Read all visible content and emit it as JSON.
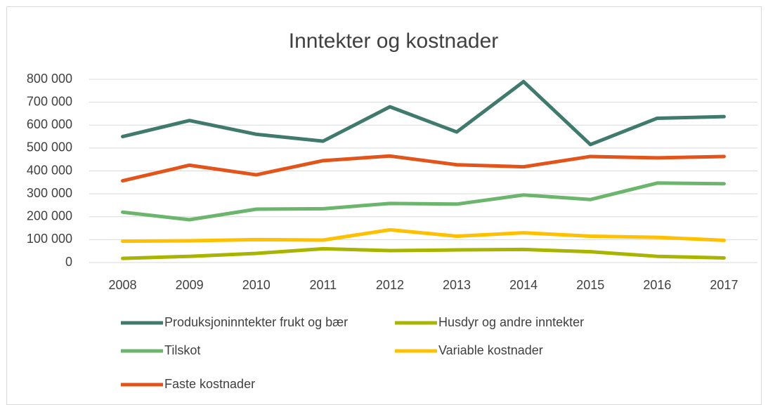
{
  "chart_data": {
    "type": "line",
    "title": "Inntekter og kostnader",
    "categories": [
      "2008",
      "2009",
      "2010",
      "2011",
      "2012",
      "2013",
      "2014",
      "2015",
      "2016",
      "2017"
    ],
    "series": [
      {
        "name": "Produksjoninntekter frukt og bær",
        "color": "#3f7a6d",
        "values": [
          550000,
          620000,
          560000,
          530000,
          680000,
          570000,
          790000,
          515000,
          630000,
          637000
        ]
      },
      {
        "name": "Husdyr og andre inntekter",
        "color": "#a9b400",
        "values": [
          18000,
          27000,
          40000,
          60000,
          52000,
          55000,
          57000,
          47000,
          27000,
          20000
        ]
      },
      {
        "name": "Tilskot",
        "color": "#6cb56c",
        "values": [
          220000,
          187000,
          233000,
          235000,
          258000,
          255000,
          295000,
          275000,
          347000,
          344000
        ]
      },
      {
        "name": "Variable kostnader",
        "color": "#ffc000",
        "values": [
          93000,
          95000,
          100000,
          98000,
          143000,
          115000,
          130000,
          115000,
          110000,
          97000
        ]
      },
      {
        "name": "Faste kostnader",
        "color": "#e2541a",
        "values": [
          357000,
          425000,
          383000,
          445000,
          465000,
          427000,
          418000,
          463000,
          457000,
          463000
        ]
      }
    ],
    "ylim": [
      0,
      800000
    ],
    "yticks": [
      0,
      {
        "value": 100000,
        "label": "100 000"
      },
      {
        "value": 200000,
        "label": "200 000"
      },
      {
        "value": 300000,
        "label": "300 000"
      },
      {
        "value": 400000,
        "label": "400 000"
      },
      {
        "value": 500000,
        "label": "500 000"
      },
      {
        "value": 600000,
        "label": "600 000"
      },
      {
        "value": 700000,
        "label": "700 000"
      },
      {
        "value": 800000,
        "label": "800 000"
      }
    ],
    "grid": true
  }
}
